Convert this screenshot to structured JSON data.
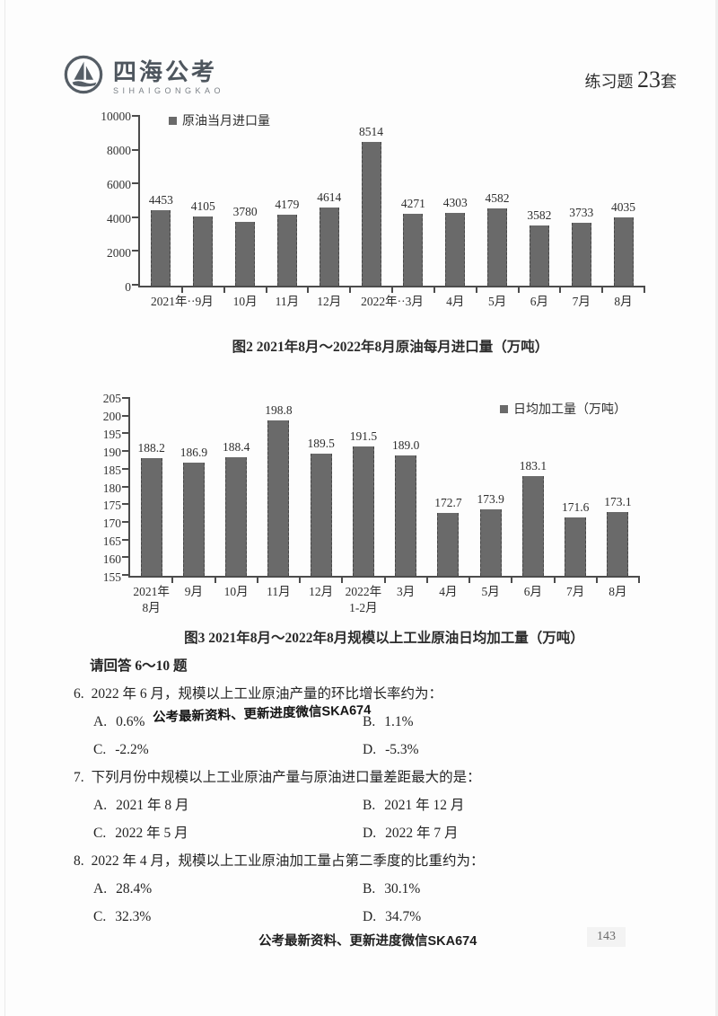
{
  "header": {
    "logo": {
      "icon": "sailboat-circle-icon",
      "name": "四海公考",
      "subtitle": "SIHAIGONGKAO"
    },
    "right": {
      "prefix": "练习题 ",
      "number": "23",
      "suffix": "套"
    }
  },
  "chart_data": [
    {
      "type": "bar",
      "title": "图2  2021年8月～2022年8月原油每月进口量（万吨）",
      "legend": "原油当月进口量",
      "legend_position": "top-left",
      "categories": [
        "2021年8月",
        "9月",
        "10月",
        "11月",
        "12月",
        "2022年1-2月",
        "3月",
        "4月",
        "5月",
        "6月",
        "7月",
        "8月"
      ],
      "values": [
        4453,
        4105,
        3780,
        4179,
        4614,
        8514,
        4271,
        4303,
        4582,
        3582,
        3733,
        4035
      ],
      "x_tick_labels": [
        {
          "text": "2021年··9月",
          "span": 2
        },
        {
          "text": "10月",
          "span": 1
        },
        {
          "text": "11月",
          "span": 1
        },
        {
          "text": "12月",
          "span": 1
        },
        {
          "text": "2022年··3月",
          "span": 2
        },
        {
          "text": "4月",
          "span": 1
        },
        {
          "text": "5月",
          "span": 1
        },
        {
          "text": "6月",
          "span": 1
        },
        {
          "text": "7月",
          "span": 1
        },
        {
          "text": "8月",
          "span": 1
        }
      ],
      "ylabel": "",
      "xlabel": "",
      "ylim": [
        0,
        10000
      ],
      "yticks": [
        0,
        2000,
        4000,
        6000,
        8000,
        10000
      ],
      "grid": false,
      "decimals": 0,
      "bar_color": "#6a6a6a"
    },
    {
      "type": "bar",
      "title": "图3  2021年8月～2022年8月规模以上工业原油日均加工量（万吨）",
      "legend": "日均加工量（万吨）",
      "legend_position": "top-right",
      "categories": [
        "2021年8月",
        "9月",
        "10月",
        "11月",
        "12月",
        "2022年1-2月",
        "3月",
        "4月",
        "5月",
        "6月",
        "7月",
        "8月"
      ],
      "values": [
        188.2,
        186.9,
        188.4,
        198.8,
        189.5,
        191.5,
        189.0,
        172.7,
        173.9,
        183.1,
        171.6,
        173.1
      ],
      "x_tick_labels": [
        {
          "text": "2021年\n8月",
          "span": 1
        },
        {
          "text": "9月",
          "span": 1
        },
        {
          "text": "10月",
          "span": 1
        },
        {
          "text": "11月",
          "span": 1
        },
        {
          "text": "12月",
          "span": 1
        },
        {
          "text": "2022年\n1-2月",
          "span": 1
        },
        {
          "text": "3月",
          "span": 1
        },
        {
          "text": "4月",
          "span": 1
        },
        {
          "text": "5月",
          "span": 1
        },
        {
          "text": "6月",
          "span": 1
        },
        {
          "text": "7月",
          "span": 1
        },
        {
          "text": "8月",
          "span": 1
        }
      ],
      "ylabel": "",
      "xlabel": "",
      "ylim": [
        155,
        205
      ],
      "yticks": [
        155,
        160,
        165,
        170,
        175,
        180,
        185,
        190,
        195,
        200,
        205
      ],
      "grid": false,
      "decimals": 1,
      "bar_color": "#6a6a6a"
    }
  ],
  "questions_intro": "请回答 6～10 题",
  "questions": [
    {
      "number": "6.",
      "text": "2022 年 6 月，规模以上工业原油产量的环比增长率约为：",
      "watermark": "公考最新资料、更新进度微信SKA674",
      "options": [
        {
          "label": "A.",
          "text": "0.6%"
        },
        {
          "label": "B.",
          "text": "1.1%"
        },
        {
          "label": "C.",
          "text": "-2.2%"
        },
        {
          "label": "D.",
          "text": "-5.3%"
        }
      ]
    },
    {
      "number": "7.",
      "text": "下列月份中规模以上工业原油产量与原油进口量差距最大的是：",
      "options": [
        {
          "label": "A.",
          "text": "2021 年 8 月"
        },
        {
          "label": "B.",
          "text": "2021 年 12 月"
        },
        {
          "label": "C.",
          "text": "2022 年 5 月"
        },
        {
          "label": "D.",
          "text": "2022 年 7 月"
        }
      ]
    },
    {
      "number": "8.",
      "text": "2022 年 4 月，规模以上工业原油加工量占第二季度的比重约为：",
      "options": [
        {
          "label": "A.",
          "text": "28.4%"
        },
        {
          "label": "B.",
          "text": "30.1%"
        },
        {
          "label": "C.",
          "text": "32.3%"
        },
        {
          "label": "D.",
          "text": "34.7%"
        }
      ]
    }
  ],
  "footer": {
    "watermark": "公考最新资料、更新进度微信SKA674",
    "page_number": "143"
  }
}
